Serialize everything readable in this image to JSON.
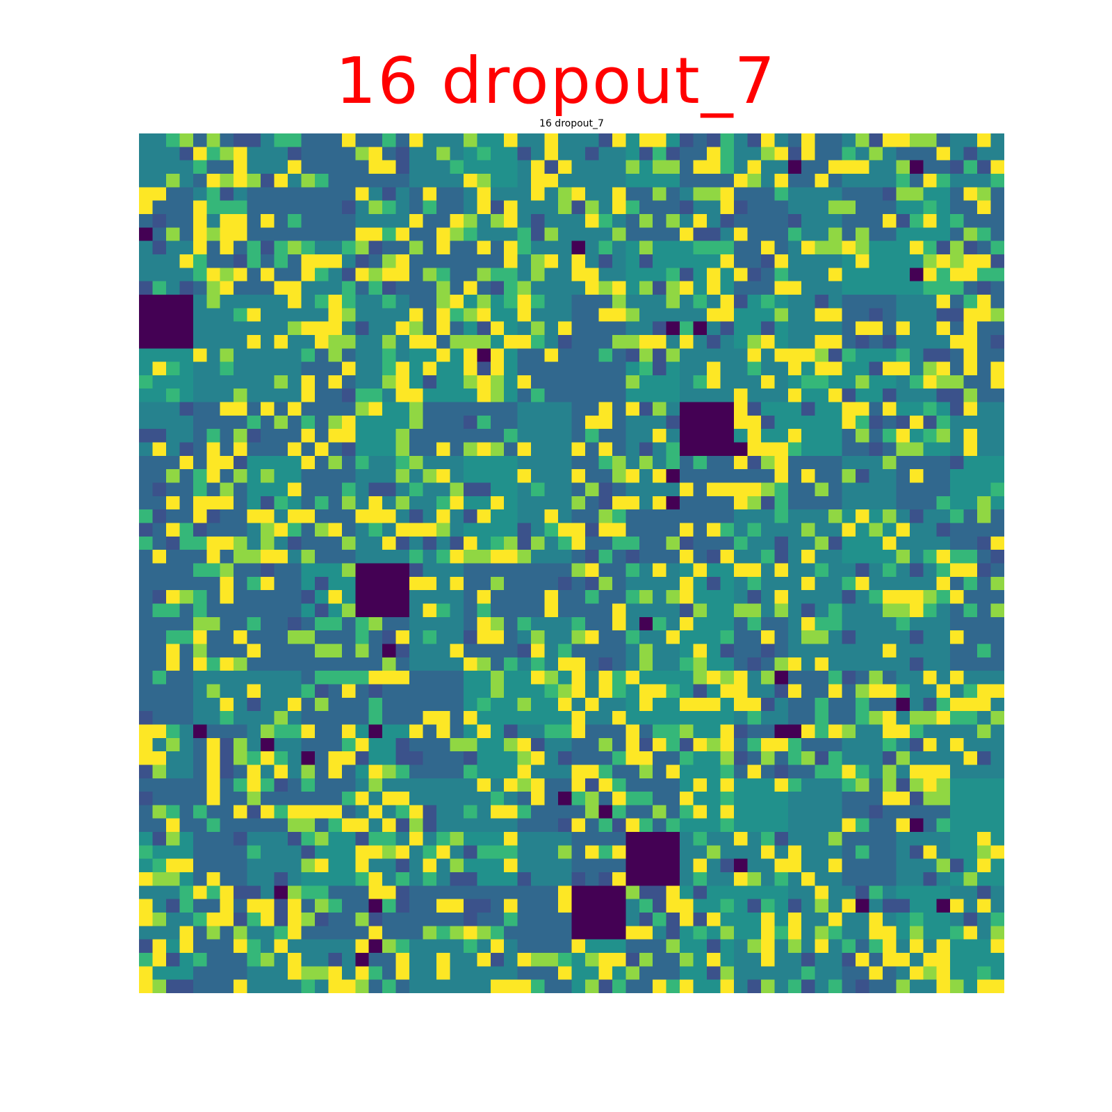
{
  "overlay_title": "16 dropout_7",
  "chart_data": {
    "type": "heatmap",
    "title": "16 dropout_7",
    "xlabel": "",
    "ylabel": "",
    "axes_visible": false,
    "colormap": "viridis",
    "grid": {
      "tiles_x": 16,
      "tiles_y": 16,
      "cells_per_tile": 4
    },
    "zero_tiles": [
      [
        0,
        3
      ],
      [
        10,
        5
      ],
      [
        4,
        8
      ],
      [
        9,
        13
      ],
      [
        8,
        14
      ]
    ],
    "colors": {
      "dark": "#440154",
      "blue": "#3b528b",
      "steel": "#31688e",
      "teal": "#26828e",
      "sea": "#21918c",
      "green": "#35b779",
      "lime": "#90d743",
      "yellow": "#fde725"
    }
  }
}
